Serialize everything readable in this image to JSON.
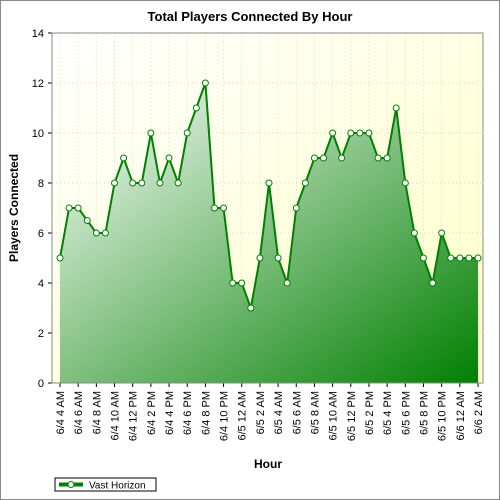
{
  "chart_data": {
    "type": "area",
    "title": "Total Players Connected By Hour",
    "x_label": "Hour",
    "y_label": "Players Connected",
    "categories": [
      "6/4 4 AM",
      null,
      "6/4 6 AM",
      null,
      "6/4 8 AM",
      null,
      "6/4 10 AM",
      null,
      "6/4 12 PM",
      null,
      "6/4 2 PM",
      null,
      "6/4 4 PM",
      null,
      "6/4 6 PM",
      null,
      "6/4 8 PM",
      null,
      "6/4 10 PM",
      null,
      "6/5 12 AM",
      null,
      "6/5 2 AM",
      null,
      "6/5 4 AM",
      null,
      "6/5 6 AM",
      null,
      "6/5 8 AM",
      null,
      "6/5 10 AM",
      null,
      "6/5 12 PM",
      null,
      "6/5 2 PM",
      null,
      "6/5 4 PM",
      null,
      "6/5 6 PM",
      null,
      "6/5 8 PM",
      null,
      "6/5 10 PM",
      null,
      "6/6 12 AM",
      null,
      "6/6 2 AM"
    ],
    "series": [
      {
        "name": "Vast Horizon",
        "color": "#008000",
        "values": [
          5,
          7,
          7,
          6.5,
          6,
          6,
          8,
          9,
          8,
          8,
          10,
          8,
          9,
          8,
          10,
          11,
          12,
          7,
          7,
          4,
          4,
          3,
          5,
          8,
          5,
          4,
          7,
          8,
          9,
          9,
          10,
          9,
          10,
          10,
          10,
          9,
          9,
          11,
          8,
          6,
          5,
          4,
          6,
          5,
          5,
          5,
          5
        ]
      }
    ],
    "ylim": [
      0,
      14
    ],
    "yticks": [
      0,
      2,
      4,
      6,
      8,
      10,
      12,
      14
    ],
    "grid": true,
    "legend": "bottom-left"
  }
}
